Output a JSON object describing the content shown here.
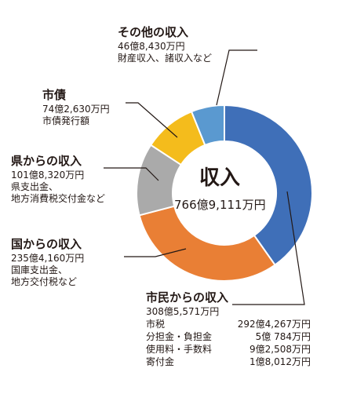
{
  "chart_data": {
    "type": "pie",
    "title": "収入",
    "total_label": "766億9,111万円",
    "values_unit": "万円",
    "segments": [
      {
        "name": "市民からの収入",
        "value": 3085571,
        "value_label": "308億5,571万円",
        "color": "#3f6fb8",
        "notes": [],
        "breakdown": [
          {
            "name": "市税",
            "value_label": "292億4,267万円"
          },
          {
            "name": "分担金・負担金",
            "value_label": "5億 784万円"
          },
          {
            "name": "使用料・手数料",
            "value_label": "9億2,508万円"
          },
          {
            "name": "寄付金",
            "value_label": "1億8,012万円"
          }
        ]
      },
      {
        "name": "国からの収入",
        "value": 2354160,
        "value_label": "235億4,160万円",
        "color": "#e97f35",
        "notes": [
          "国庫支出金、",
          "地方交付税など"
        ]
      },
      {
        "name": "県からの収入",
        "value": 1018320,
        "value_label": "101億8,320万円",
        "color": "#aaaaaa",
        "notes": [
          "県支出金、",
          "地方消費税交付金など"
        ]
      },
      {
        "name": "市債",
        "value": 742630,
        "value_label": "74億2,630万円",
        "color": "#f4bc1c",
        "notes": [
          "市債発行額"
        ]
      },
      {
        "name": "その他の収入",
        "value": 468430,
        "value_label": "46億8,430万円",
        "color": "#5a99d0",
        "notes": [
          "財産収入、諸収入など"
        ]
      }
    ]
  }
}
